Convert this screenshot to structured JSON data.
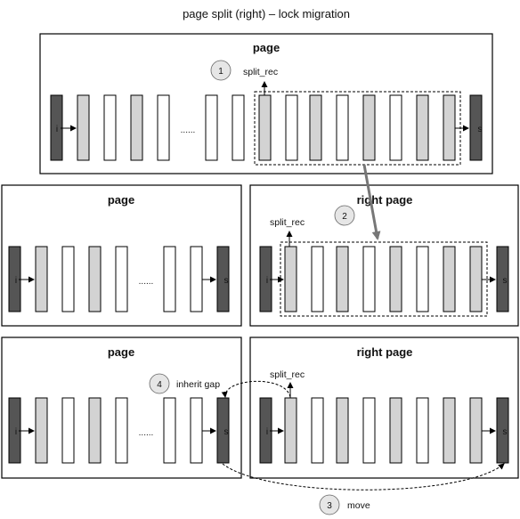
{
  "diagram": {
    "title": "page split (right) – lock migration",
    "top_page": {
      "label": "page",
      "split_rec_label": "split_rec",
      "step": "1",
      "infimum": "i",
      "supremum": "s",
      "ellipsis": "......"
    },
    "mid_left": {
      "label": "page",
      "infimum": "i",
      "supremum": "s",
      "ellipsis": "......"
    },
    "mid_right": {
      "label": "right page",
      "split_rec_label": "split_rec",
      "step": "2",
      "infimum": "i",
      "supremum": "s"
    },
    "bot_left": {
      "label": "page",
      "step": "4",
      "step_label": "inherit gap",
      "infimum": "i",
      "supremum": "s",
      "ellipsis": "......"
    },
    "bot_right": {
      "label": "right page",
      "split_rec_label": "split_rec",
      "infimum": "i",
      "supremum": "s"
    },
    "move": {
      "step": "3",
      "label": "move"
    },
    "colors": {
      "infimum_supremum": "#555555",
      "shaded_record": "#d3d3d3",
      "plain_record": "#ffffff",
      "border": "#000000",
      "migration_arrow": "#777777",
      "step_circle": "#e6e6e6"
    }
  }
}
